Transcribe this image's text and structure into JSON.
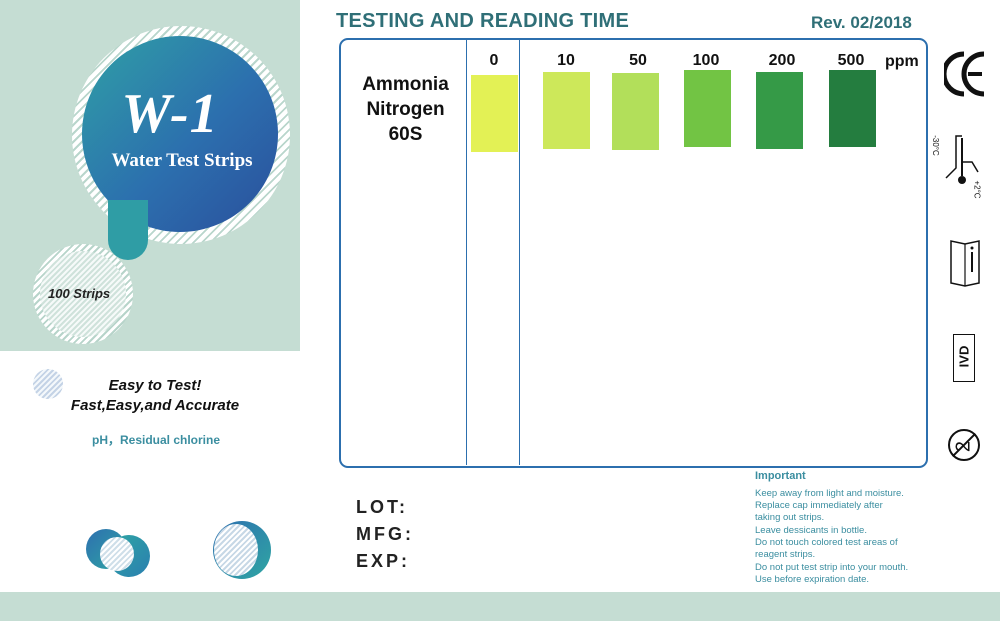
{
  "brand": {
    "title": "W-1",
    "subtitle": "Water Test Strips",
    "count_label": "100  Strips"
  },
  "tagline": {
    "line1": "Easy to Test!",
    "line2": "Fast,Easy,and Accurate",
    "params": "pH，Residual chlorine"
  },
  "header": {
    "title": "TESTING AND READING TIME",
    "revision": "Rev. 02/2018"
  },
  "chart": {
    "test_name_lines": [
      "Ammonia",
      "Nitrogen",
      "60S"
    ],
    "unit": "ppm",
    "levels": [
      {
        "label": "0",
        "color": "#e3f155"
      },
      {
        "label": "10",
        "color": "#cde85a"
      },
      {
        "label": "50",
        "color": "#b2df5a"
      },
      {
        "label": "100",
        "color": "#72c444"
      },
      {
        "label": "200",
        "color": "#359a47"
      },
      {
        "label": "500",
        "color": "#247d3f"
      }
    ]
  },
  "fields": {
    "lot": "LOT:",
    "mfg": "MFG:",
    "exp": "EXP:"
  },
  "important": {
    "title": "Important",
    "lines": [
      "Keep away from light and moisture.",
      "Replace   cap   immediately   after",
      "taking out strips.",
      "Leave dessicants in bottle.",
      "Do not touch colored test areas of",
      "reagent strips.",
      "Do not put test strip into your mouth.",
      "Use before expiration date."
    ]
  },
  "symbols": {
    "ce": "CE",
    "temp_low": "-30°C",
    "temp_high": "+2°C",
    "ivd": "IVD",
    "single_use": "2"
  }
}
